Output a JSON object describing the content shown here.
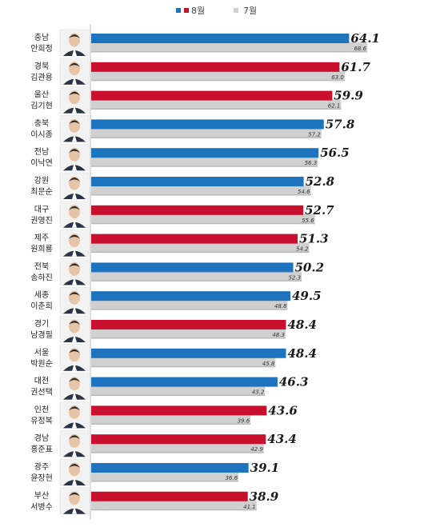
{
  "chart_data": {
    "type": "bar",
    "orientation": "horizontal",
    "legend": [
      {
        "label": "8월",
        "color": "#c8102e",
        "alt_color": "#1e73be"
      },
      {
        "label": "7월",
        "color": "#d0d0d0"
      }
    ],
    "colors": {
      "blue": "#1e73be",
      "red": "#c8102e",
      "gray": "#d0d0d0"
    },
    "xlim": [
      0,
      70
    ],
    "rows": [
      {
        "region": "충남",
        "name": "안희정",
        "aug": 64.1,
        "jul": 68.6,
        "aug_label": "64.1",
        "jul_label": "68.6",
        "color": "blue"
      },
      {
        "region": "경북",
        "name": "김관용",
        "aug": 61.7,
        "jul": 63.0,
        "aug_label": "61.7",
        "jul_label": "63.0",
        "color": "red"
      },
      {
        "region": "울산",
        "name": "김기현",
        "aug": 59.9,
        "jul": 62.1,
        "aug_label": "59.9",
        "jul_label": "62.1",
        "color": "red"
      },
      {
        "region": "충북",
        "name": "이시종",
        "aug": 57.8,
        "jul": 57.2,
        "aug_label": "57.8",
        "jul_label": "57.2",
        "color": "blue"
      },
      {
        "region": "전남",
        "name": "이낙연",
        "aug": 56.5,
        "jul": 56.3,
        "aug_label": "56.5",
        "jul_label": "56.3",
        "color": "blue"
      },
      {
        "region": "강원",
        "name": "최문순",
        "aug": 52.8,
        "jul": 54.6,
        "aug_label": "52.8",
        "jul_label": "54.6",
        "color": "blue"
      },
      {
        "region": "대구",
        "name": "권영진",
        "aug": 52.7,
        "jul": 55.6,
        "aug_label": "52.7",
        "jul_label": "55.6",
        "color": "red"
      },
      {
        "region": "제주",
        "name": "원희룡",
        "aug": 51.3,
        "jul": 54.2,
        "aug_label": "51.3",
        "jul_label": "54.2",
        "color": "red"
      },
      {
        "region": "전북",
        "name": "송하진",
        "aug": 50.2,
        "jul": 52.3,
        "aug_label": "50.2",
        "jul_label": "52.3",
        "color": "blue"
      },
      {
        "region": "세종",
        "name": "이춘희",
        "aug": 49.5,
        "jul": 48.8,
        "aug_label": "49.5",
        "jul_label": "48.8",
        "color": "blue"
      },
      {
        "region": "경기",
        "name": "남경필",
        "aug": 48.4,
        "jul": 48.3,
        "aug_label": "48.4",
        "jul_label": "48.3",
        "color": "red"
      },
      {
        "region": "서울",
        "name": "박원순",
        "aug": 48.4,
        "jul": 45.8,
        "aug_label": "48.4",
        "jul_label": "45.8",
        "color": "blue"
      },
      {
        "region": "대전",
        "name": "권선택",
        "aug": 46.3,
        "jul": 43.2,
        "aug_label": "46.3",
        "jul_label": "43.2",
        "color": "blue"
      },
      {
        "region": "인천",
        "name": "유정복",
        "aug": 43.6,
        "jul": 39.6,
        "aug_label": "43.6",
        "jul_label": "39.6",
        "color": "red"
      },
      {
        "region": "경남",
        "name": "홍준표",
        "aug": 43.4,
        "jul": 42.9,
        "aug_label": "43.4",
        "jul_label": "42.9",
        "color": "red"
      },
      {
        "region": "광주",
        "name": "윤장현",
        "aug": 39.1,
        "jul": 36.6,
        "aug_label": "39.1",
        "jul_label": "36.6",
        "color": "blue"
      },
      {
        "region": "부산",
        "name": "서병수",
        "aug": 38.9,
        "jul": 41.1,
        "aug_label": "38.9",
        "jul_label": "41.1",
        "color": "red"
      }
    ]
  }
}
